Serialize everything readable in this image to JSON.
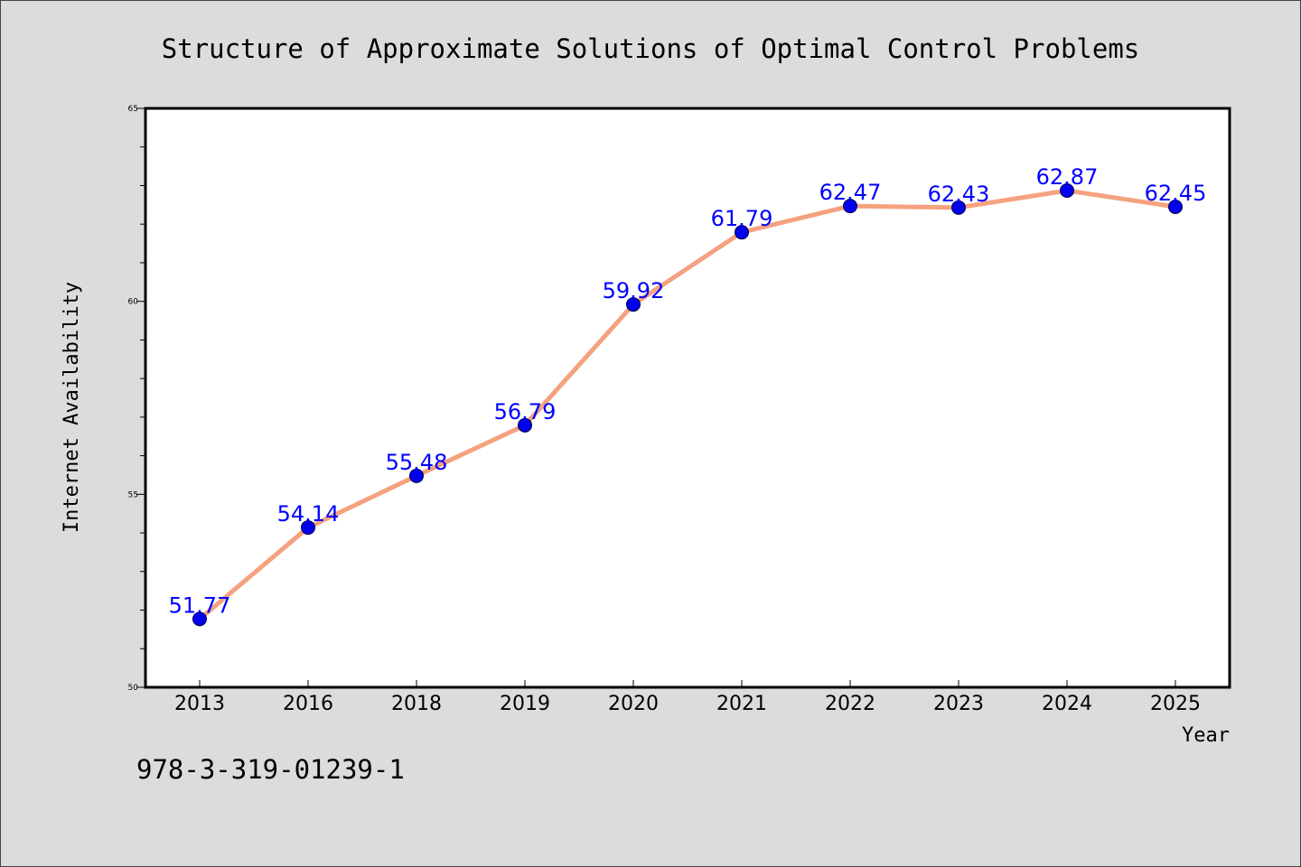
{
  "footer_code": "978-3-319-01239-1",
  "colors": {
    "background": "#dcdcdc",
    "plot_area": "#ffffff",
    "line": "#f4a27f",
    "marker": "#0000ee",
    "data_label": "#0000ff"
  },
  "chart_data": {
    "type": "line",
    "title": "Structure of Approximate Solutions of Optimal Control Problems",
    "xlabel": "Year",
    "ylabel": "Internet Availability",
    "categories": [
      "2013",
      "2016",
      "2018",
      "2019",
      "2020",
      "2021",
      "2022",
      "2023",
      "2024",
      "2025"
    ],
    "series": [
      {
        "values": [
          51.77,
          54.14,
          55.48,
          56.79,
          59.92,
          61.79,
          62.47,
          62.43,
          62.87,
          62.45
        ]
      }
    ],
    "data_labels": [
      "51.77",
      "54.14",
      "55.48",
      "56.79",
      "59.92",
      "61.79",
      "62.47",
      "62.43",
      "62.87",
      "62.45"
    ],
    "ylim": [
      50,
      65
    ],
    "yticks": [
      50,
      55,
      60,
      65
    ],
    "ytick_labels": [
      "50",
      "55",
      "60",
      "65"
    ],
    "y_minor_step": 1,
    "grid": false,
    "legend": "none"
  }
}
